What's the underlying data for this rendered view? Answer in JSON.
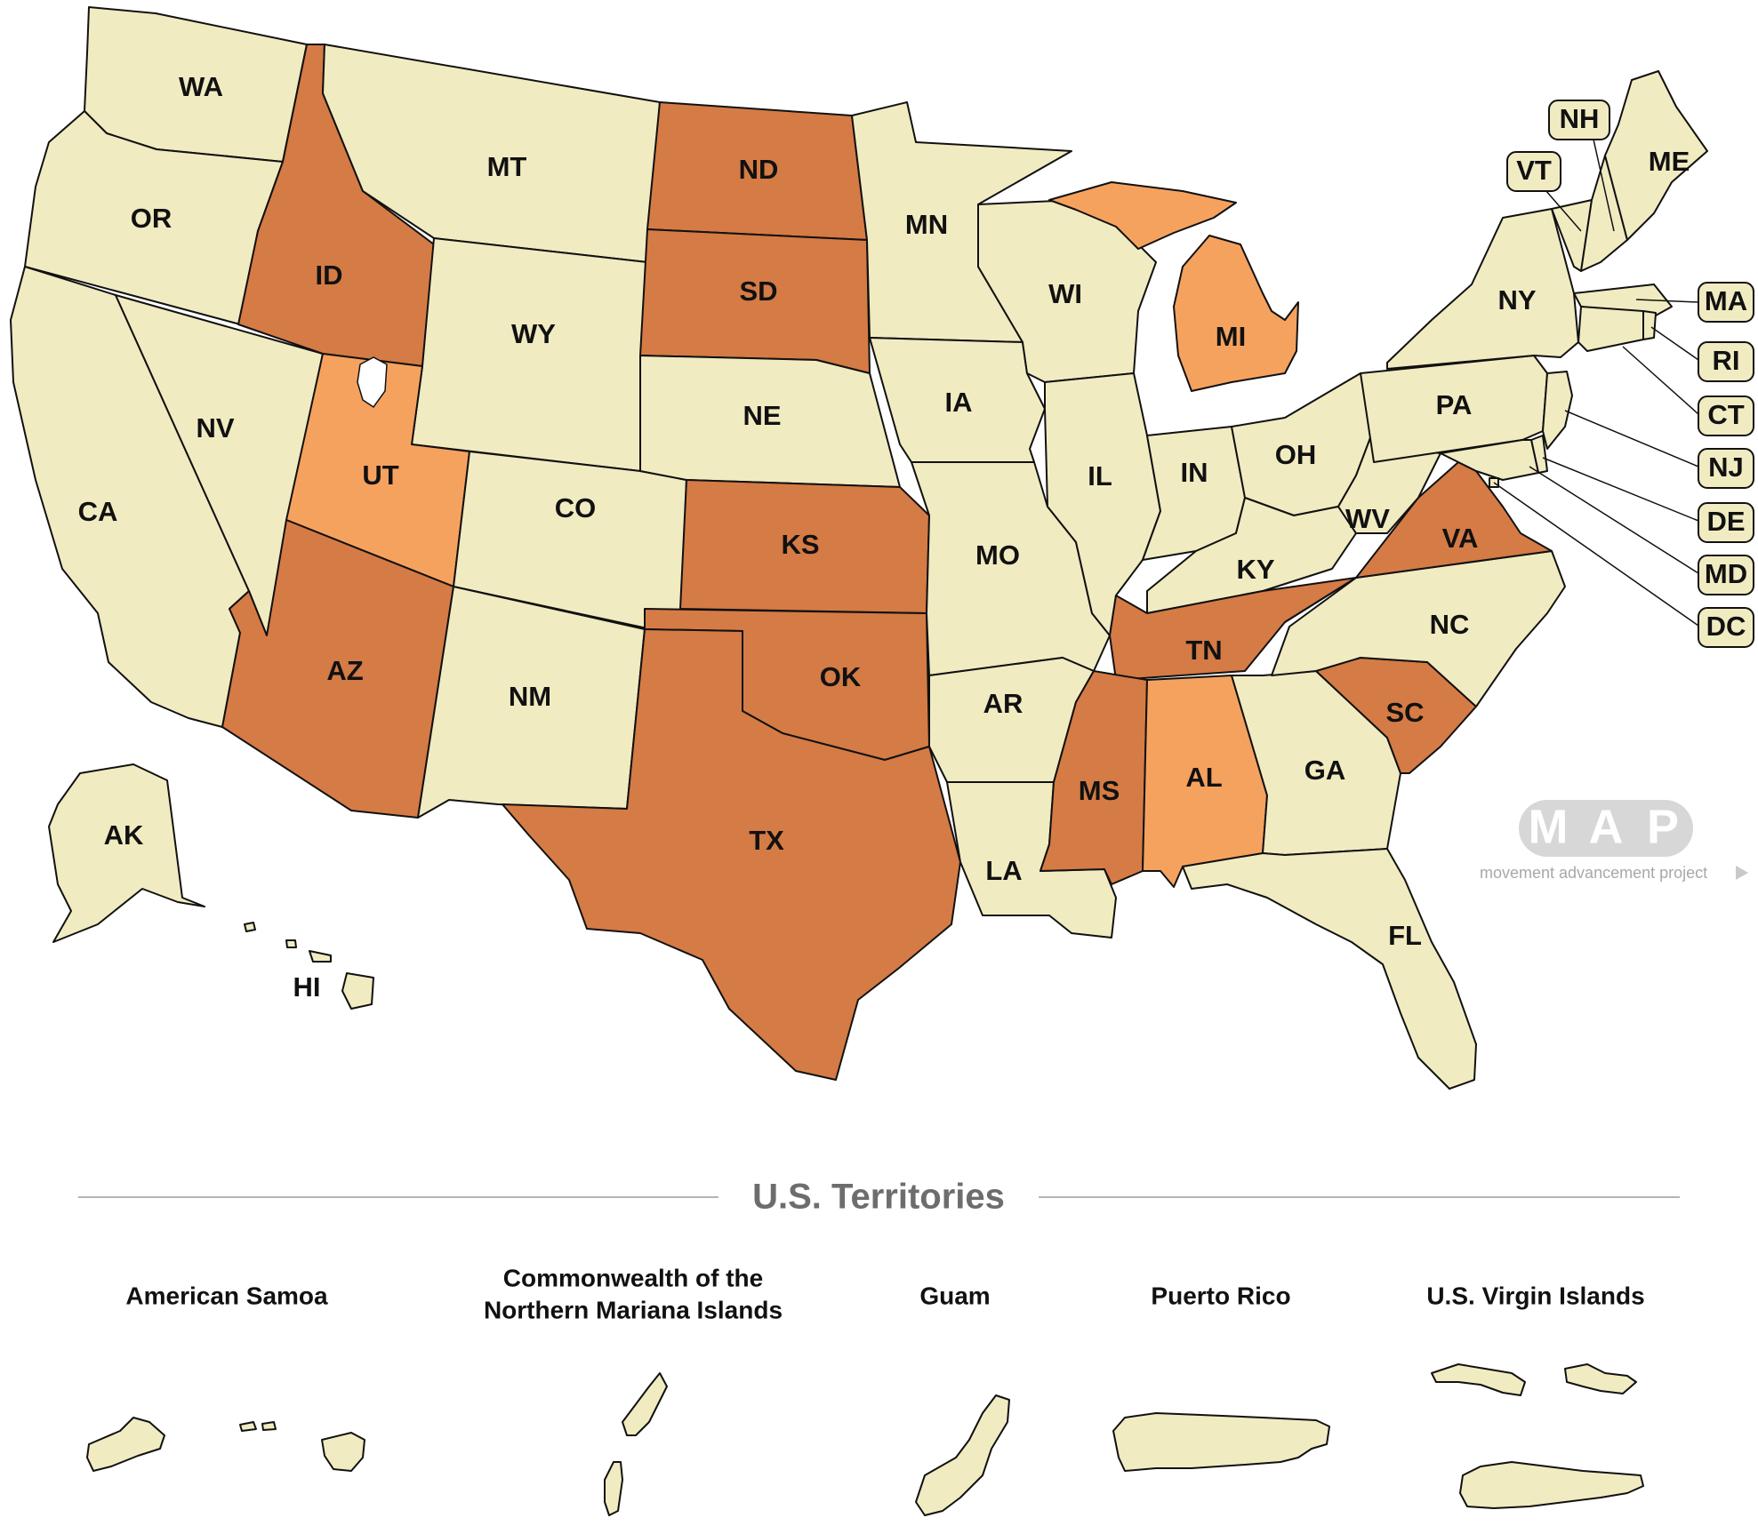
{
  "colors": {
    "default": "#f1ebc1",
    "dark": "#d57b45",
    "light": "#f6a25f"
  },
  "states": [
    {
      "abbr": "WA",
      "fill": "default"
    },
    {
      "abbr": "OR",
      "fill": "default"
    },
    {
      "abbr": "CA",
      "fill": "default"
    },
    {
      "abbr": "NV",
      "fill": "default"
    },
    {
      "abbr": "ID",
      "fill": "dark"
    },
    {
      "abbr": "MT",
      "fill": "default"
    },
    {
      "abbr": "WY",
      "fill": "default"
    },
    {
      "abbr": "UT",
      "fill": "light"
    },
    {
      "abbr": "CO",
      "fill": "default"
    },
    {
      "abbr": "AZ",
      "fill": "dark"
    },
    {
      "abbr": "NM",
      "fill": "default"
    },
    {
      "abbr": "ND",
      "fill": "dark"
    },
    {
      "abbr": "SD",
      "fill": "dark"
    },
    {
      "abbr": "NE",
      "fill": "default"
    },
    {
      "abbr": "KS",
      "fill": "dark"
    },
    {
      "abbr": "OK",
      "fill": "dark"
    },
    {
      "abbr": "TX",
      "fill": "dark"
    },
    {
      "abbr": "MN",
      "fill": "default"
    },
    {
      "abbr": "IA",
      "fill": "default"
    },
    {
      "abbr": "MO",
      "fill": "default"
    },
    {
      "abbr": "AR",
      "fill": "default"
    },
    {
      "abbr": "LA",
      "fill": "default"
    },
    {
      "abbr": "WI",
      "fill": "default"
    },
    {
      "abbr": "IL",
      "fill": "default"
    },
    {
      "abbr": "MI",
      "fill": "light"
    },
    {
      "abbr": "IN",
      "fill": "default"
    },
    {
      "abbr": "OH",
      "fill": "default"
    },
    {
      "abbr": "KY",
      "fill": "default"
    },
    {
      "abbr": "TN",
      "fill": "dark"
    },
    {
      "abbr": "MS",
      "fill": "dark"
    },
    {
      "abbr": "AL",
      "fill": "light"
    },
    {
      "abbr": "GA",
      "fill": "default"
    },
    {
      "abbr": "FL",
      "fill": "default"
    },
    {
      "abbr": "SC",
      "fill": "dark"
    },
    {
      "abbr": "NC",
      "fill": "default"
    },
    {
      "abbr": "VA",
      "fill": "dark"
    },
    {
      "abbr": "WV",
      "fill": "default"
    },
    {
      "abbr": "PA",
      "fill": "default"
    },
    {
      "abbr": "NY",
      "fill": "default"
    },
    {
      "abbr": "VT",
      "fill": "default"
    },
    {
      "abbr": "NH",
      "fill": "default"
    },
    {
      "abbr": "ME",
      "fill": "default"
    },
    {
      "abbr": "MA",
      "fill": "default"
    },
    {
      "abbr": "RI",
      "fill": "default"
    },
    {
      "abbr": "CT",
      "fill": "default"
    },
    {
      "abbr": "NJ",
      "fill": "default"
    },
    {
      "abbr": "DE",
      "fill": "default"
    },
    {
      "abbr": "MD",
      "fill": "default"
    },
    {
      "abbr": "DC",
      "fill": "default"
    },
    {
      "abbr": "AK",
      "fill": "default"
    },
    {
      "abbr": "HI",
      "fill": "default"
    }
  ],
  "logo": {
    "letters": [
      "M",
      "A",
      "P"
    ],
    "tagline": "movement advancement project"
  },
  "territories": {
    "title": "U.S. Territories",
    "items": [
      {
        "name_lines": [
          "American Samoa"
        ],
        "fill": "default"
      },
      {
        "name_lines": [
          "Commonwealth of the",
          "Northern Mariana Islands"
        ],
        "fill": "default"
      },
      {
        "name_lines": [
          "Guam"
        ],
        "fill": "default"
      },
      {
        "name_lines": [
          "Puerto Rico"
        ],
        "fill": "default"
      },
      {
        "name_lines": [
          "U.S. Virgin Islands"
        ],
        "fill": "default"
      }
    ]
  }
}
